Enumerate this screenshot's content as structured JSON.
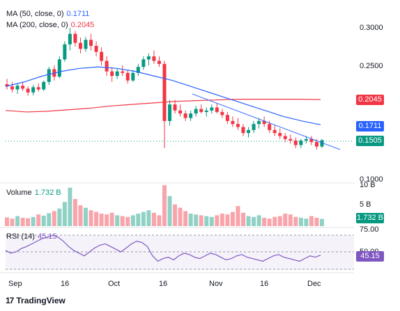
{
  "chart_data": {
    "type": "candlestick",
    "price_axis": {
      "min": 0.1,
      "max": 0.3,
      "ticks": [
        "0.3000",
        "0.2500",
        "0.1000"
      ]
    },
    "x_ticks": [
      "Sep",
      "16",
      "Oct",
      "16",
      "Nov",
      "16",
      "Dec"
    ],
    "indicators": {
      "ma50": {
        "label": "MA (50, close, 0)",
        "value": "0.1711",
        "color": "#2962ff"
      },
      "ma200": {
        "label": "MA (200, close, 0)",
        "value": "0.2045",
        "color": "#f23645"
      },
      "last_price": {
        "value": "0.1505",
        "color": "#089981"
      }
    },
    "volume": {
      "label": "Volume",
      "value": "1.732 B",
      "ticks": [
        "10 B",
        "5 B"
      ]
    },
    "rsi": {
      "label": "RSI (14)",
      "value": "45.15",
      "ticks": [
        "75.00",
        "50.00"
      ],
      "color": "#7e57c2"
    },
    "candles": [
      [
        0.225,
        0.232,
        0.218,
        0.222
      ],
      [
        0.222,
        0.228,
        0.214,
        0.218
      ],
      [
        0.218,
        0.226,
        0.212,
        0.223
      ],
      [
        0.223,
        0.228,
        0.216,
        0.219
      ],
      [
        0.219,
        0.222,
        0.21,
        0.214
      ],
      [
        0.214,
        0.224,
        0.21,
        0.221
      ],
      [
        0.221,
        0.226,
        0.215,
        0.218
      ],
      [
        0.218,
        0.23,
        0.216,
        0.228
      ],
      [
        0.228,
        0.248,
        0.224,
        0.245
      ],
      [
        0.245,
        0.25,
        0.23,
        0.235
      ],
      [
        0.235,
        0.262,
        0.233,
        0.258
      ],
      [
        0.258,
        0.282,
        0.255,
        0.278
      ],
      [
        0.278,
        0.3,
        0.27,
        0.292
      ],
      [
        0.292,
        0.296,
        0.275,
        0.28
      ],
      [
        0.28,
        0.287,
        0.266,
        0.272
      ],
      [
        0.272,
        0.288,
        0.268,
        0.284
      ],
      [
        0.284,
        0.292,
        0.27,
        0.276
      ],
      [
        0.276,
        0.282,
        0.262,
        0.268
      ],
      [
        0.268,
        0.274,
        0.25,
        0.256
      ],
      [
        0.256,
        0.262,
        0.236,
        0.242
      ],
      [
        0.242,
        0.248,
        0.228,
        0.236
      ],
      [
        0.236,
        0.246,
        0.232,
        0.242
      ],
      [
        0.242,
        0.25,
        0.236,
        0.24
      ],
      [
        0.24,
        0.244,
        0.226,
        0.23
      ],
      [
        0.23,
        0.244,
        0.228,
        0.24
      ],
      [
        0.24,
        0.252,
        0.236,
        0.248
      ],
      [
        0.248,
        0.262,
        0.244,
        0.258
      ],
      [
        0.258,
        0.266,
        0.25,
        0.262
      ],
      [
        0.262,
        0.27,
        0.252,
        0.256
      ],
      [
        0.256,
        0.262,
        0.248,
        0.252
      ],
      [
        0.252,
        0.256,
        0.14,
        0.176
      ],
      [
        0.176,
        0.204,
        0.17,
        0.198
      ],
      [
        0.198,
        0.204,
        0.186,
        0.19
      ],
      [
        0.19,
        0.198,
        0.182,
        0.186
      ],
      [
        0.186,
        0.19,
        0.176,
        0.18
      ],
      [
        0.18,
        0.19,
        0.176,
        0.186
      ],
      [
        0.186,
        0.196,
        0.182,
        0.192
      ],
      [
        0.192,
        0.198,
        0.186,
        0.188
      ],
      [
        0.188,
        0.194,
        0.182,
        0.19
      ],
      [
        0.19,
        0.198,
        0.186,
        0.194
      ],
      [
        0.194,
        0.2,
        0.186,
        0.188
      ],
      [
        0.188,
        0.192,
        0.18,
        0.184
      ],
      [
        0.184,
        0.188,
        0.172,
        0.176
      ],
      [
        0.176,
        0.182,
        0.168,
        0.172
      ],
      [
        0.172,
        0.18,
        0.164,
        0.168
      ],
      [
        0.168,
        0.172,
        0.156,
        0.16
      ],
      [
        0.16,
        0.168,
        0.154,
        0.164
      ],
      [
        0.164,
        0.176,
        0.16,
        0.172
      ],
      [
        0.172,
        0.18,
        0.166,
        0.176
      ],
      [
        0.176,
        0.182,
        0.168,
        0.172
      ],
      [
        0.172,
        0.176,
        0.16,
        0.164
      ],
      [
        0.164,
        0.17,
        0.156,
        0.16
      ],
      [
        0.16,
        0.166,
        0.152,
        0.156
      ],
      [
        0.156,
        0.16,
        0.148,
        0.152
      ],
      [
        0.152,
        0.158,
        0.146,
        0.15
      ],
      [
        0.15,
        0.154,
        0.14,
        0.144
      ],
      [
        0.144,
        0.152,
        0.14,
        0.15
      ],
      [
        0.15,
        0.156,
        0.146,
        0.152
      ],
      [
        0.152,
        0.156,
        0.144,
        0.148
      ],
      [
        0.148,
        0.152,
        0.138,
        0.142
      ],
      [
        0.142,
        0.152,
        0.14,
        0.1505
      ]
    ],
    "ma50_series": [
      0.222,
      0.228,
      0.236,
      0.242,
      0.246,
      0.248,
      0.246,
      0.242,
      0.236,
      0.23,
      0.222,
      0.214,
      0.206,
      0.198,
      0.19,
      0.182,
      0.176,
      0.171
    ],
    "ma200_series": [
      0.19,
      0.188,
      0.189,
      0.191,
      0.193,
      0.196,
      0.198,
      0.2,
      0.202,
      0.203,
      0.204,
      0.205,
      0.205,
      0.205,
      0.205,
      0.2045
    ],
    "trendline": [
      0.212,
      0.138
    ],
    "volumes": [
      2.1,
      1.8,
      2.4,
      2.0,
      1.9,
      2.2,
      2.8,
      2.5,
      3.1,
      3.6,
      4.2,
      5.8,
      9.2,
      6.5,
      5.0,
      4.4,
      3.8,
      3.4,
      3.0,
      2.8,
      3.2,
      2.6,
      2.4,
      2.2,
      2.6,
      3.0,
      3.4,
      3.8,
      3.2,
      2.6,
      9.8,
      7.2,
      5.2,
      4.4,
      3.6,
      3.0,
      2.8,
      2.6,
      2.4,
      2.2,
      2.6,
      3.0,
      2.8,
      3.4,
      4.8,
      3.2,
      2.4,
      2.2,
      2.6,
      2.0,
      1.8,
      2.2,
      2.4,
      3.0,
      2.8,
      2.2,
      2.0,
      1.8,
      2.4,
      2.0,
      1.732
    ],
    "rsi_series": [
      52,
      48,
      50,
      55,
      58,
      62,
      66,
      70,
      72,
      75,
      72,
      66,
      58,
      52,
      48,
      44,
      50,
      56,
      60,
      62,
      58,
      54,
      50,
      56,
      62,
      66,
      64,
      58,
      44,
      36,
      40,
      42,
      38,
      44,
      48,
      46,
      42,
      40,
      44,
      48,
      46,
      42,
      38,
      40,
      44,
      46,
      42,
      40,
      38,
      36,
      40,
      44,
      46,
      42,
      40,
      38,
      36,
      40,
      44,
      42,
      45.15
    ]
  },
  "footer": {
    "brand": "TradingView",
    "brand_logo": "17"
  }
}
